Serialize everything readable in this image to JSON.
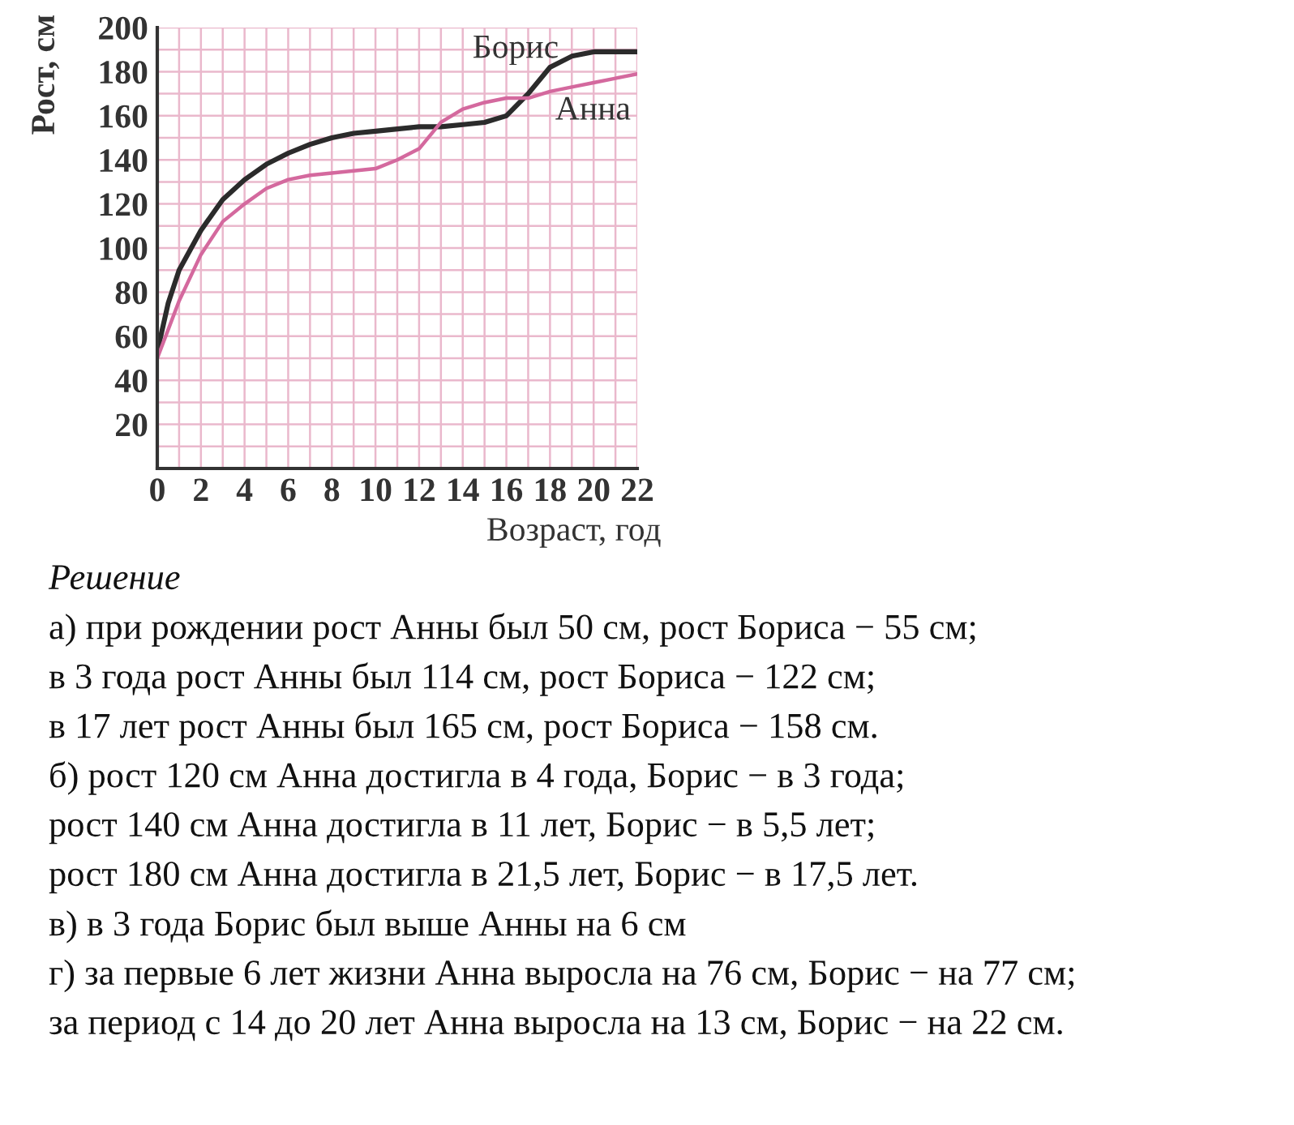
{
  "chart_data": {
    "type": "line",
    "xlabel": "Возраст, год",
    "ylabel": "Рост, см",
    "x": [
      0,
      0.5,
      1,
      2,
      3,
      4,
      5,
      6,
      7,
      8,
      9,
      10,
      11,
      12,
      13,
      14,
      15,
      16,
      17,
      18,
      19,
      20,
      21,
      22
    ],
    "series": [
      {
        "name": "Борис",
        "color": "#2b2b2b",
        "values": [
          53,
          75,
          90,
          108,
          122,
          131,
          138,
          143,
          147,
          150,
          152,
          153,
          154,
          155,
          155,
          156,
          157,
          160,
          170,
          182,
          187,
          189,
          189,
          189
        ]
      },
      {
        "name": "Анна",
        "color": "#d4699e",
        "values": [
          50,
          63,
          76,
          97,
          112,
          120,
          127,
          131,
          133,
          134,
          135,
          136,
          140,
          145,
          157,
          163,
          166,
          168,
          168,
          171,
          173,
          175,
          177,
          179
        ]
      }
    ],
    "xlim": [
      0,
      22
    ],
    "ylim": [
      0,
      200
    ],
    "xticks": [
      0,
      {
        "value": 1,
        "label": null
      },
      2,
      {
        "value": 3,
        "label": null
      },
      4,
      {
        "value": 5,
        "label": null
      },
      6,
      {
        "value": 7,
        "label": null
      },
      8,
      {
        "value": 9,
        "label": null
      },
      10,
      {
        "value": 11,
        "label": null
      },
      12,
      {
        "value": 13,
        "label": null
      },
      14,
      {
        "value": 15,
        "label": null
      },
      16,
      {
        "value": 17,
        "label": null
      },
      18,
      {
        "value": 19,
        "label": null
      },
      20,
      {
        "value": 21,
        "label": null
      },
      22
    ],
    "yticks": [
      {
        "value": 0,
        "label": null
      },
      {
        "value": 10,
        "label": null
      },
      20,
      {
        "value": 30,
        "label": null
      },
      40,
      {
        "value": 50,
        "label": null
      },
      60,
      {
        "value": 70,
        "label": null
      },
      80,
      {
        "value": 90,
        "label": null
      },
      100,
      {
        "value": 110,
        "label": null
      },
      120,
      {
        "value": 130,
        "label": null
      },
      140,
      {
        "value": 150,
        "label": null
      },
      160,
      {
        "value": 170,
        "label": null
      },
      180,
      {
        "value": 190,
        "label": null
      },
      200
    ],
    "grid": true,
    "legend": false,
    "marker": "none",
    "line_style": "solid",
    "annotations": [
      "Решение",
      "а) при рождении рост Анны был 50 см, рост Бориса − 55 см;",
      "в 3 года рост Анны был 114 см, рост Бориса − 122 см;",
      "в 17 лет рост Анны был 165 см, рост Бориса − 158 см.",
      "б) рост 120 см Анна достигла в 4 года, Борис − в 3 года;",
      "рост 140 см Анна достигла в 11 лет, Борис − в 5,5 лет;",
      "рост 180 см Анна достигла в 21,5 лет, Борис − в 17,5 лет.",
      "в) в 3 года Борис был выше Анны на 6 см",
      "г) за первые 6 лет жизни Анна выросла на 76 см, Борис − на 77 см;",
      "за период с 14 до 20 лет Анна выросла на 13 см, Борис − на 22 см."
    ]
  }
}
